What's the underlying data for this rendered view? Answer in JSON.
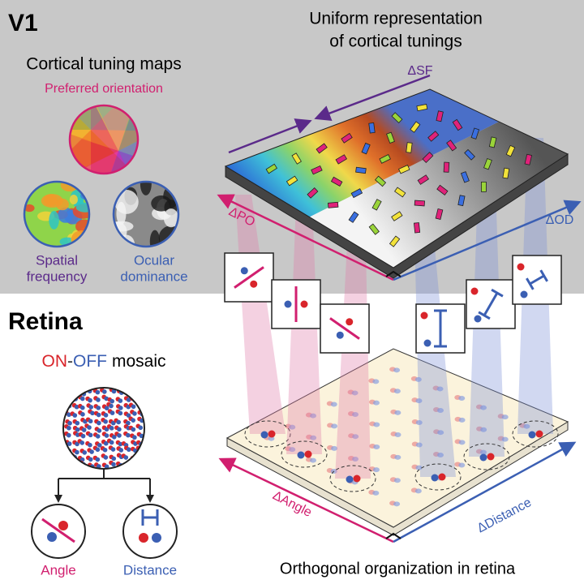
{
  "v1": {
    "title": "V1",
    "maps_title": "Cortical tuning maps",
    "orientation_label": "Preferred orientation",
    "sf_label": [
      "Spatial",
      "frequency"
    ],
    "od_label": [
      "Ocular",
      "dominance"
    ]
  },
  "cortex": {
    "title": [
      "Uniform representation",
      "of cortical tunings"
    ],
    "axis_sf": "ΔSF",
    "axis_po": "ΔPO",
    "axis_od": "ΔOD"
  },
  "retina": {
    "title": "Retina",
    "mosaic_title": [
      "ON",
      "-",
      "OFF",
      "mosaic"
    ],
    "angle_label": "Angle",
    "distance_label": "Distance",
    "axis_angle": "ΔAngle",
    "axis_distance": "ΔDistance",
    "caption": "Orthogonal organization in retina"
  }
}
